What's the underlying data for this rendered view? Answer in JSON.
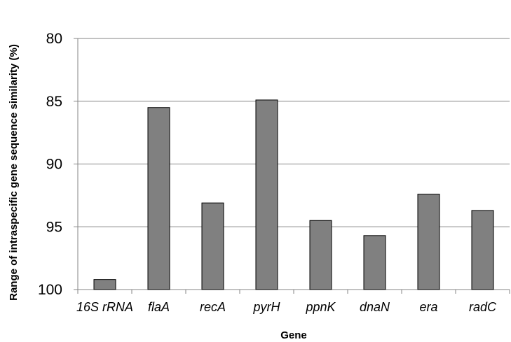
{
  "chart_data": {
    "type": "bar",
    "title": "",
    "xlabel": "Gene",
    "ylabel": "Range of intraspecific gene sequence similarity (%)",
    "categories": [
      "16S rRNA",
      "flaA",
      "recA",
      "pyrH",
      "ppnK",
      "dnaN",
      "era",
      "radC"
    ],
    "values": [
      99.2,
      85.5,
      93.1,
      84.9,
      94.5,
      95.7,
      92.4,
      93.7
    ],
    "ylim": [
      80,
      100
    ],
    "y_axis_inverted": true,
    "yticks": [
      80,
      85,
      90,
      95,
      100
    ],
    "grid": true,
    "legend": "none",
    "colors": {
      "bar_fill": "#808080",
      "bar_stroke": "#000000",
      "grid": "#868686",
      "axis": "#868686"
    }
  }
}
